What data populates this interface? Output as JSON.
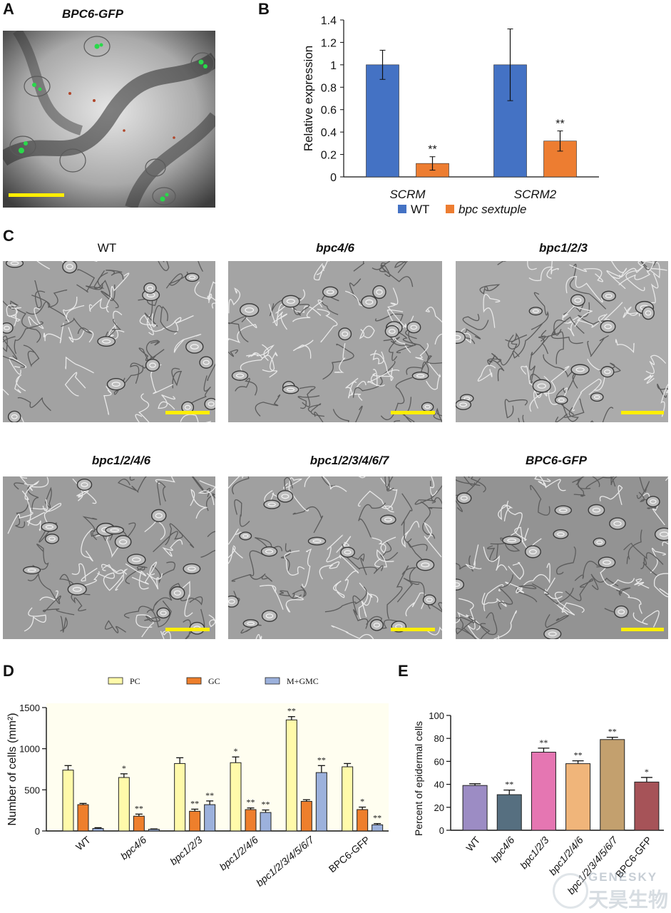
{
  "panels": {
    "A": {
      "label": "A",
      "title": "BPC6-GFP"
    },
    "B": {
      "label": "B"
    },
    "C": {
      "label": "C",
      "images": [
        {
          "title": "WT"
        },
        {
          "title": "bpc4/6"
        },
        {
          "title": "bpc1/2/3"
        },
        {
          "title": "bpc1/2/4/6"
        },
        {
          "title": "bpc1/2/3/4/6/7"
        },
        {
          "title": "BPC6-GFP"
        }
      ]
    },
    "D": {
      "label": "D"
    },
    "E": {
      "label": "E"
    }
  },
  "colors": {
    "wt_blue": "#4472c4",
    "sextuple_orange": "#ed7d31",
    "pc_yellow": "#fffaaa",
    "gc_orange": "#ee7f2c",
    "mgmc_blue": "#9cb1dc",
    "scalebar": "#ffee00"
  },
  "chart_data": [
    {
      "panel": "B",
      "type": "bar",
      "categories": [
        "SCRM",
        "SCRM2"
      ],
      "series": [
        {
          "name": "WT",
          "values": [
            1.0,
            1.0
          ],
          "errors": [
            0.13,
            0.32
          ],
          "sig": [
            "",
            ""
          ]
        },
        {
          "name": "bpc sextuple",
          "values": [
            0.12,
            0.32
          ],
          "errors": [
            0.06,
            0.09
          ],
          "sig": [
            "**",
            "**"
          ]
        }
      ],
      "ylabel": "Relative expression",
      "ylim": [
        0,
        1.4
      ],
      "yticks": [
        "0",
        "0.2",
        "0.4",
        "0.6",
        "0.8",
        "1",
        "1.2",
        "1.4"
      ],
      "legend": "bottom"
    },
    {
      "panel": "D",
      "type": "bar",
      "categories": [
        "WT",
        "bpc4/6",
        "bpc1/2/3",
        "bpc1/2/4/6",
        "bpc1/2/3/4/5/6/7",
        "BPC6-GFP"
      ],
      "series": [
        {
          "name": "PC",
          "values": [
            740,
            650,
            820,
            830,
            1350,
            780
          ],
          "errors": [
            55,
            45,
            70,
            70,
            40,
            40
          ],
          "sig": [
            "",
            "*",
            "",
            "*",
            "**",
            ""
          ]
        },
        {
          "name": "GC",
          "values": [
            320,
            180,
            240,
            260,
            360,
            260
          ],
          "errors": [
            15,
            25,
            25,
            20,
            20,
            30
          ],
          "sig": [
            "",
            "**",
            "**",
            "**",
            "",
            "*"
          ]
        },
        {
          "name": "M+GMC",
          "values": [
            30,
            20,
            320,
            225,
            710,
            75
          ],
          "errors": [
            10,
            5,
            45,
            30,
            85,
            15
          ],
          "sig": [
            "",
            "",
            "**",
            "**",
            "**",
            "**"
          ]
        }
      ],
      "ylabel": "Number of cells (mm²)",
      "ylim": [
        0,
        1500
      ],
      "yticks": [
        "0",
        "500",
        "1000",
        "1500"
      ],
      "legend": "top"
    },
    {
      "panel": "E",
      "type": "bar",
      "categories": [
        "WT",
        "bpc4/6",
        "bpc1/2/3",
        "bpc1/2/4/6",
        "bpc1/2/3/4/5/6/7",
        "BPC6-GFP"
      ],
      "values": [
        39,
        31,
        68,
        58,
        79,
        42
      ],
      "errors": [
        1.5,
        4,
        3.5,
        2.5,
        2,
        4
      ],
      "sig": [
        "",
        "**",
        "**",
        "**",
        "**",
        "*"
      ],
      "colors": [
        "#9c8cc4",
        "#566f80",
        "#e576b2",
        "#f0b57a",
        "#c3a06e",
        "#a65358"
      ],
      "ylabel": "Percent of epidermal cells",
      "ylim": [
        0,
        100
      ],
      "yticks": [
        "0",
        "20",
        "40",
        "60",
        "80",
        "100"
      ]
    }
  ],
  "watermark": {
    "line1": "GENESKY",
    "line2": "天昊生物"
  }
}
